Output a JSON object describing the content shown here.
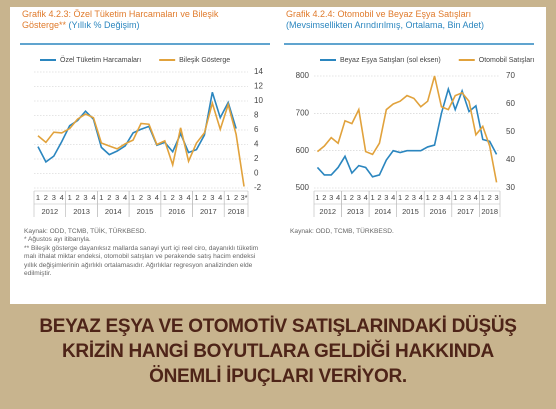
{
  "chart_data": [
    {
      "type": "line",
      "title": "Grafik 4.2.3: Özel Tüketim Harcamaları ve Bileşik Gösterge**",
      "subtitle": "(Yıllık % Değişim)",
      "years": [
        {
          "label": "2012",
          "quarters": [
            "1",
            "2",
            "3",
            "4"
          ]
        },
        {
          "label": "2013",
          "quarters": [
            "1",
            "2",
            "3",
            "4"
          ]
        },
        {
          "label": "2014",
          "quarters": [
            "1",
            "2",
            "3",
            "4"
          ]
        },
        {
          "label": "2015",
          "quarters": [
            "1",
            "2",
            "3",
            "4"
          ]
        },
        {
          "label": "2016",
          "quarters": [
            "1",
            "2",
            "3",
            "4"
          ]
        },
        {
          "label": "2017",
          "quarters": [
            "1",
            "2",
            "3",
            "4"
          ]
        },
        {
          "label": "2018",
          "quarters": [
            "1",
            "2",
            "3*"
          ]
        }
      ],
      "series": [
        {
          "name": "Özel Tüketim Harcamaları",
          "color": "#2b86bf",
          "values": [
            3.7,
            1.6,
            2.4,
            4.4,
            6.6,
            7.3,
            8.6,
            7.5,
            3.6,
            2.6,
            3.1,
            3.8,
            5.6,
            6.1,
            6.5,
            3.9,
            4.3,
            3.0,
            5.5,
            2.9,
            3.3,
            5.3,
            11.2,
            7.7,
            9.8,
            6.2,
            null
          ]
        },
        {
          "name": "Bileşik Gösterge",
          "color": "#e1a23c",
          "values": [
            5.2,
            4.3,
            5.7,
            5.6,
            6.2,
            7.5,
            8.2,
            7.7,
            4.2,
            3.8,
            3.4,
            4.1,
            4.6,
            6.9,
            6.8,
            4.0,
            4.5,
            1.2,
            6.3,
            1.7,
            4.2,
            5.6,
            9.7,
            6.1,
            9.5,
            5.4,
            -1.8
          ]
        }
      ],
      "ylim": [
        -2,
        14
      ],
      "yticks": [
        -2,
        0,
        2,
        4,
        6,
        8,
        10,
        12,
        14
      ],
      "y_axis_side": "right",
      "grid": true,
      "notes": [
        "Kaynak: ODD, TCMB, TÜİK, TÜRKBESD.",
        "* Ağustos ayı itibarıyla.",
        "** Bileşik gösterge dayanıksız mallarda sanayi yurt içi reel ciro, dayanıklı tüketim malı ithalat miktar endeksi, otomobil satışları ve perakende satış hacim endeksi yıllık değişimlerinin ağırlıklı ortalamasıdır. Ağırlıklar regresyon analizinden elde edilmiştir."
      ]
    },
    {
      "type": "line",
      "title": "Grafik 4.2.4: Otomobil ve Beyaz Eşya Satışları",
      "subtitle": "(Mevsimsellikten Arındırılmış, Ortalama, Bin Adet)",
      "years": [
        {
          "label": "2012",
          "quarters": [
            "1",
            "2",
            "3",
            "4"
          ]
        },
        {
          "label": "2013",
          "quarters": [
            "1",
            "2",
            "3",
            "4"
          ]
        },
        {
          "label": "2014",
          "quarters": [
            "1",
            "2",
            "3",
            "4"
          ]
        },
        {
          "label": "2015",
          "quarters": [
            "1",
            "2",
            "3",
            "4"
          ]
        },
        {
          "label": "2016",
          "quarters": [
            "1",
            "2",
            "3",
            "4"
          ]
        },
        {
          "label": "2017",
          "quarters": [
            "1",
            "2",
            "3",
            "4"
          ]
        },
        {
          "label": "2018",
          "quarters": [
            "1",
            "2",
            "3"
          ]
        }
      ],
      "series": [
        {
          "name": "Beyaz Eşya Satışları (sol eksen)",
          "color": "#2b86bf",
          "values": [
            555,
            535,
            535,
            555,
            585,
            540,
            560,
            555,
            530,
            535,
            575,
            600,
            595,
            600,
            600,
            600,
            610,
            615,
            700,
            765,
            710,
            760,
            705,
            720,
            630,
            625,
            590
          ]
        },
        {
          "name": "Otomobil Satışları",
          "color": "#e1a23c",
          "axis": "y2",
          "values": [
            43,
            45,
            48,
            46,
            54,
            53,
            58,
            43,
            42,
            46,
            58,
            60,
            61,
            63,
            62,
            59,
            61,
            70,
            59,
            58,
            63,
            64,
            61,
            49,
            52,
            45,
            32
          ]
        }
      ],
      "ylim": [
        500,
        800
      ],
      "yticks": [
        500,
        600,
        700,
        800
      ],
      "y2lim": [
        30,
        70
      ],
      "y2ticks": [
        30,
        40,
        50,
        60,
        70
      ],
      "grid": true,
      "notes": [
        "Kaynak: ODD, TCMB, TÜRKBESD."
      ]
    }
  ],
  "banner": [
    "BEYAZ EŞYA VE OTOMOTİV SATIŞLARINDAKİ DÜŞÜŞ",
    "KRİZİN HANGİ BOYUTLARA GELDİĞİ HAKKINDA",
    "ÖNEMLİ İPUÇLARI VERİYOR."
  ]
}
